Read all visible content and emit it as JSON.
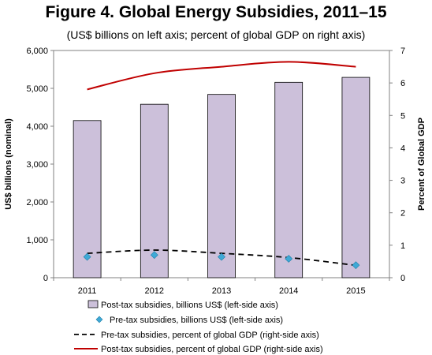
{
  "chart_data": {
    "type": "bar",
    "title": "Figure 4. Global Energy Subsidies, 2011–15",
    "subtitle": "(US$ billions on left axis; percent of global GDP on right axis)",
    "categories": [
      "2011",
      "2012",
      "2013",
      "2014",
      "2015"
    ],
    "ylabel_left": "US$ billions (nominal)",
    "ylabel_right": "Percent of Global GDP",
    "ylim_left": [
      0,
      6000
    ],
    "yticks_left": [
      "0",
      "1,000",
      "2,000",
      "3,000",
      "4,000",
      "5,000",
      "6,000"
    ],
    "ylim_right": [
      0,
      7
    ],
    "yticks_right": [
      "0",
      "1",
      "2",
      "3",
      "4",
      "5",
      "6",
      "7"
    ],
    "grid": false,
    "legend_position": "bottom",
    "series": [
      {
        "name": "Post-tax subsidies, billions US$ (left-side axis)",
        "kind": "bar",
        "axis": "left",
        "color": "#ccc0da",
        "edge_color": "#000000",
        "values": [
          4150,
          4580,
          4840,
          5160,
          5290
        ]
      },
      {
        "name": "Pre-tax subsidies, billions US$ (left-side axis)",
        "kind": "marker",
        "axis": "left",
        "color": "#3fa9d6",
        "values": [
          550,
          600,
          550,
          500,
          330
        ]
      },
      {
        "name": "Pre-tax subsidies, percent of global GDP (right-side axis)",
        "kind": "dashed-line",
        "axis": "right",
        "color": "#000000",
        "values": [
          0.75,
          0.85,
          0.75,
          0.62,
          0.38
        ]
      },
      {
        "name": "Post-tax subsidies, percent of global GDP (right-side axis)",
        "kind": "line",
        "axis": "right",
        "color": "#c00000",
        "values": [
          5.8,
          6.3,
          6.5,
          6.65,
          6.5
        ]
      }
    ]
  }
}
